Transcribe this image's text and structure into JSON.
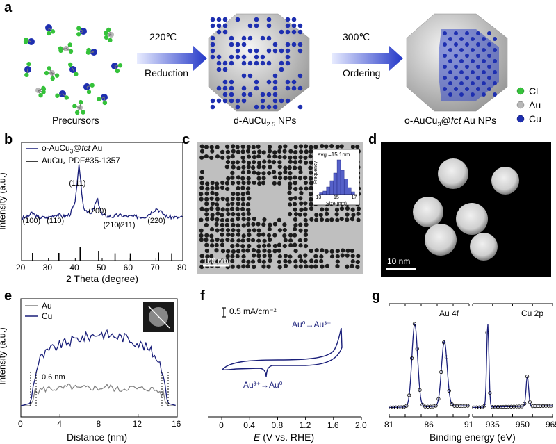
{
  "panels": {
    "a": "a",
    "b": "b",
    "c": "c",
    "d": "d",
    "e": "e",
    "f": "f",
    "g": "g"
  },
  "panel_a": {
    "precursors_label": "Precursors",
    "arrow1_top": "220℃",
    "arrow1_bottom": "Reduction",
    "np1_label_pre": "d-AuCu",
    "np1_label_sub": "2.5",
    "np1_label_post": " NPs",
    "arrow2_top": "300℃",
    "arrow2_bottom": "Ordering",
    "np2_label_pre": "o-AuCu",
    "np2_label_sub": "3",
    "np2_label_mid": "@",
    "np2_label_ital": "fct",
    "np2_label_post": " Au NPs",
    "legend": [
      {
        "label": "Cl",
        "color": "#35c23a"
      },
      {
        "label": "Au",
        "color": "#b8b8b8"
      },
      {
        "label": "Cu",
        "color": "#1e2fb0"
      }
    ]
  },
  "chart_data": [
    {
      "panel": "b",
      "type": "line",
      "xlabel": "2 Theta (degree)",
      "ylabel": "Intensity (a.u.)",
      "xlim": [
        20,
        80
      ],
      "xticks": [
        20,
        30,
        40,
        50,
        60,
        70,
        80
      ],
      "series": [
        {
          "name_pre": "o-AuCu",
          "name_sub": "3",
          "name_mid": "@",
          "name_ital": "fct",
          "name_post": " Au",
          "color": "#1a1f7a",
          "x": [
            20,
            22,
            23.9,
            26,
            30,
            32.8,
            36,
            38,
            40,
            41.3,
            43,
            46,
            48.2,
            50,
            54,
            55.8,
            58,
            62,
            66,
            70.3,
            74,
            78,
            80
          ],
          "y": [
            0.3,
            0.31,
            0.37,
            0.31,
            0.31,
            0.35,
            0.32,
            0.35,
            0.5,
            1.0,
            0.44,
            0.35,
            0.55,
            0.34,
            0.32,
            0.34,
            0.33,
            0.32,
            0.32,
            0.43,
            0.32,
            0.31,
            0.31
          ]
        },
        {
          "name": "AuCu₃ PDF#35-1357",
          "color": "#000000",
          "type": "stick",
          "x": [
            24.1,
            33.9,
            41.8,
            48.7,
            54.8,
            60.5,
            71.0,
            75.9
          ],
          "y": [
            0.05,
            0.05,
            0.2,
            0.1,
            0.04,
            0.04,
            0.06,
            0.04
          ]
        }
      ],
      "annotations": [
        {
          "text": "(100)",
          "x": 24
        },
        {
          "text": "(110)",
          "x": 33
        },
        {
          "text": "(111)",
          "x": 41.3
        },
        {
          "text": "(200)",
          "x": 48.5
        },
        {
          "text": "(210)",
          "x": 54
        },
        {
          "text": "(211)",
          "x": 59.5
        },
        {
          "text": "(220)",
          "x": 70.5
        }
      ]
    },
    {
      "panel": "c_inset",
      "type": "bar",
      "title": "avg.=15.1nm",
      "xlabel": "Size (nm)",
      "ylabel": "Frequency",
      "xticks": [
        13,
        15,
        17
      ],
      "xlim": [
        12.8,
        17.2
      ],
      "categories": [
        13.2,
        13.6,
        14.0,
        14.4,
        14.8,
        15.2,
        15.6,
        16.0,
        16.4,
        16.8
      ],
      "values": [
        0.05,
        0.1,
        0.22,
        0.4,
        0.62,
        1.0,
        0.7,
        0.45,
        0.2,
        0.08
      ]
    },
    {
      "panel": "e",
      "type": "line",
      "xlabel": "Distance (nm)",
      "ylabel": "Intensity (a.u.)",
      "xlim": [
        0,
        16
      ],
      "xticks": [
        0,
        4,
        8,
        12,
        16
      ],
      "series": [
        {
          "name": "Au",
          "color": "#808080",
          "x": [
            0,
            1.0,
            1.4,
            2,
            3,
            4,
            5,
            6,
            7,
            8,
            9,
            10,
            11,
            12,
            13,
            14,
            14.6,
            15,
            16
          ],
          "y": [
            0.05,
            0.05,
            0.2,
            0.24,
            0.26,
            0.25,
            0.28,
            0.25,
            0.27,
            0.26,
            0.28,
            0.24,
            0.27,
            0.25,
            0.26,
            0.23,
            0.18,
            0.05,
            0.05
          ]
        },
        {
          "name": "Cu",
          "color": "#1a1f7a",
          "x": [
            0,
            1.0,
            1.5,
            2,
            3,
            4,
            5,
            6,
            7,
            8,
            9,
            10,
            11,
            12,
            13,
            14,
            14.6,
            15,
            16
          ],
          "y": [
            0.05,
            0.08,
            0.45,
            0.62,
            0.72,
            0.78,
            0.82,
            0.86,
            0.88,
            0.92,
            0.9,
            0.88,
            0.86,
            0.8,
            0.74,
            0.62,
            0.45,
            0.08,
            0.05
          ]
        }
      ],
      "annotations": [
        {
          "text": "0.6 nm"
        }
      ]
    },
    {
      "panel": "f",
      "type": "line",
      "xlabel_ital": "E",
      "xlabel_rest": " (V vs. RHE)",
      "xlim": [
        -0.2,
        2.0
      ],
      "xticks": [
        0,
        0.4,
        0.8,
        1.2,
        1.6,
        2.0
      ],
      "scale_bar": "0.5 mA/cm⁻²",
      "annotations": [
        {
          "text": "Au⁰→Au³⁺"
        },
        {
          "text": "Au³⁺→Au⁰"
        }
      ]
    },
    {
      "panel": "g",
      "type": "line",
      "xlabel": "Binding energy (eV)",
      "subplots": [
        {
          "name": "Au 4f",
          "xlim": [
            81,
            91
          ],
          "xticks": [
            81,
            86,
            91
          ],
          "peaks": [
            {
              "center": 84.2,
              "height": 1.0,
              "width": 0.5
            },
            {
              "center": 87.9,
              "height": 0.78,
              "width": 0.5
            }
          ]
        },
        {
          "name": "Cu 2p",
          "xlim": [
            925,
            965
          ],
          "xticks": [
            935,
            950,
            965
          ],
          "peaks": [
            {
              "center": 932.6,
              "height": 1.0,
              "width": 0.8
            },
            {
              "center": 952.4,
              "height": 0.36,
              "width": 0.9
            }
          ]
        }
      ]
    }
  ],
  "panel_c": {
    "scale": "100 nm"
  },
  "panel_d": {
    "scale": "10 nm"
  }
}
